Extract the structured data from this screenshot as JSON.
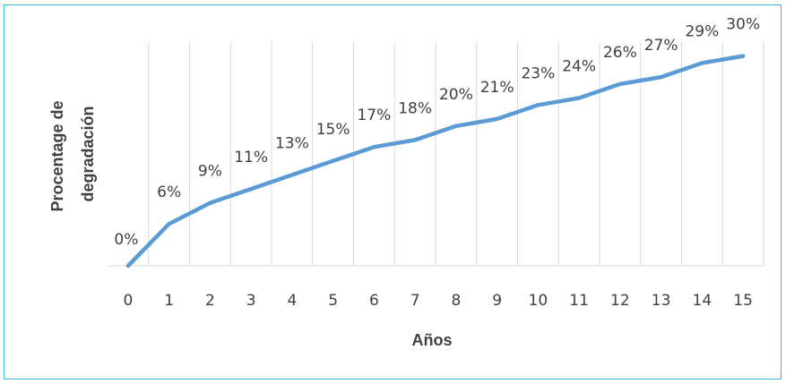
{
  "chart_data": {
    "type": "line",
    "title": "",
    "xlabel": "Años",
    "ylabel": "Procentage de degradación",
    "ylabel_lines": [
      "Procentage de",
      "degradación"
    ],
    "categories": [
      "0",
      "1",
      "2",
      "3",
      "4",
      "5",
      "6",
      "7",
      "8",
      "9",
      "10",
      "11",
      "12",
      "13",
      "14",
      "15"
    ],
    "series": [
      {
        "values": [
          0,
          6,
          9,
          11,
          13,
          15,
          17,
          18,
          20,
          21,
          23,
          24,
          26,
          27,
          29,
          30
        ],
        "labels": [
          "0%",
          "6%",
          "9%",
          "11%",
          "13%",
          "15%",
          "17%",
          "18%",
          "20%",
          "21%",
          "23%",
          "24%",
          "26%",
          "27%",
          "29%",
          "30%"
        ]
      }
    ],
    "ylim": [
      0,
      32
    ],
    "grid": "vertical",
    "legend": "none",
    "colors": {
      "line": "#5b9bd5",
      "grid": "#d9d9d9",
      "text": "#404040",
      "frame": "#3fb3d8"
    }
  }
}
